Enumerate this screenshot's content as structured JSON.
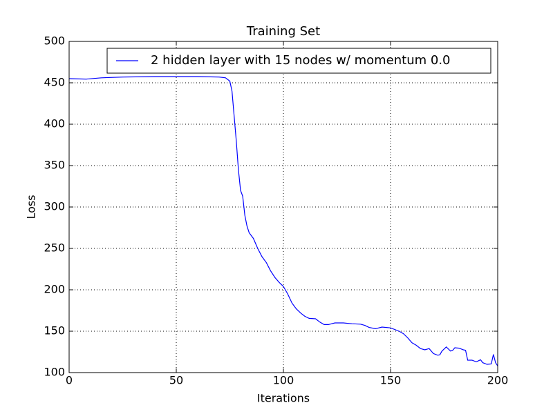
{
  "chart_data": {
    "type": "line",
    "title": "Training Set",
    "x_label": "Iterations",
    "y_label": "Loss",
    "x": [
      0,
      8,
      15,
      25,
      40,
      60,
      70,
      73,
      75,
      76,
      77,
      78,
      79,
      80,
      81,
      82,
      83,
      84,
      86,
      88,
      90,
      92,
      94,
      96,
      98,
      100,
      102,
      104,
      106,
      108,
      110,
      112,
      115,
      117,
      119,
      121,
      124,
      128,
      132,
      136,
      138,
      140,
      143,
      146,
      150,
      154,
      156,
      158,
      160,
      162,
      164,
      166,
      168,
      170,
      172,
      173,
      174,
      176,
      178,
      179,
      180,
      182,
      184,
      185,
      186,
      188,
      190,
      192,
      193,
      195,
      197,
      198,
      199,
      200
    ],
    "series": [
      {
        "name": "2 hidden layer with 15 nodes w/ momentum 0.0",
        "color": "#0000ff",
        "values": [
          455,
          454.5,
          456,
          457,
          457.5,
          457.5,
          457,
          456,
          452,
          440,
          410,
          380,
          345,
          320,
          313,
          290,
          277,
          269,
          262,
          250,
          240,
          233,
          223,
          215,
          209,
          204,
          195,
          184,
          177,
          172,
          168,
          165.5,
          165,
          161,
          158,
          158,
          160,
          160,
          159,
          158.5,
          157,
          154.5,
          153,
          155,
          154,
          150,
          147,
          142,
          136,
          133,
          129,
          127.5,
          129,
          123,
          121,
          121.5,
          126,
          131,
          126,
          127,
          130,
          129.5,
          127.5,
          127,
          115,
          115,
          113,
          115.5,
          112,
          110,
          110.5,
          122,
          112,
          108
        ]
      }
    ],
    "xlim": [
      0,
      200
    ],
    "xticks": [
      0,
      50,
      100,
      150,
      200
    ],
    "ylim": [
      100,
      500
    ],
    "yticks": [
      100,
      150,
      200,
      250,
      300,
      350,
      400,
      450,
      500
    ],
    "grid": true,
    "legend": "upper right"
  }
}
